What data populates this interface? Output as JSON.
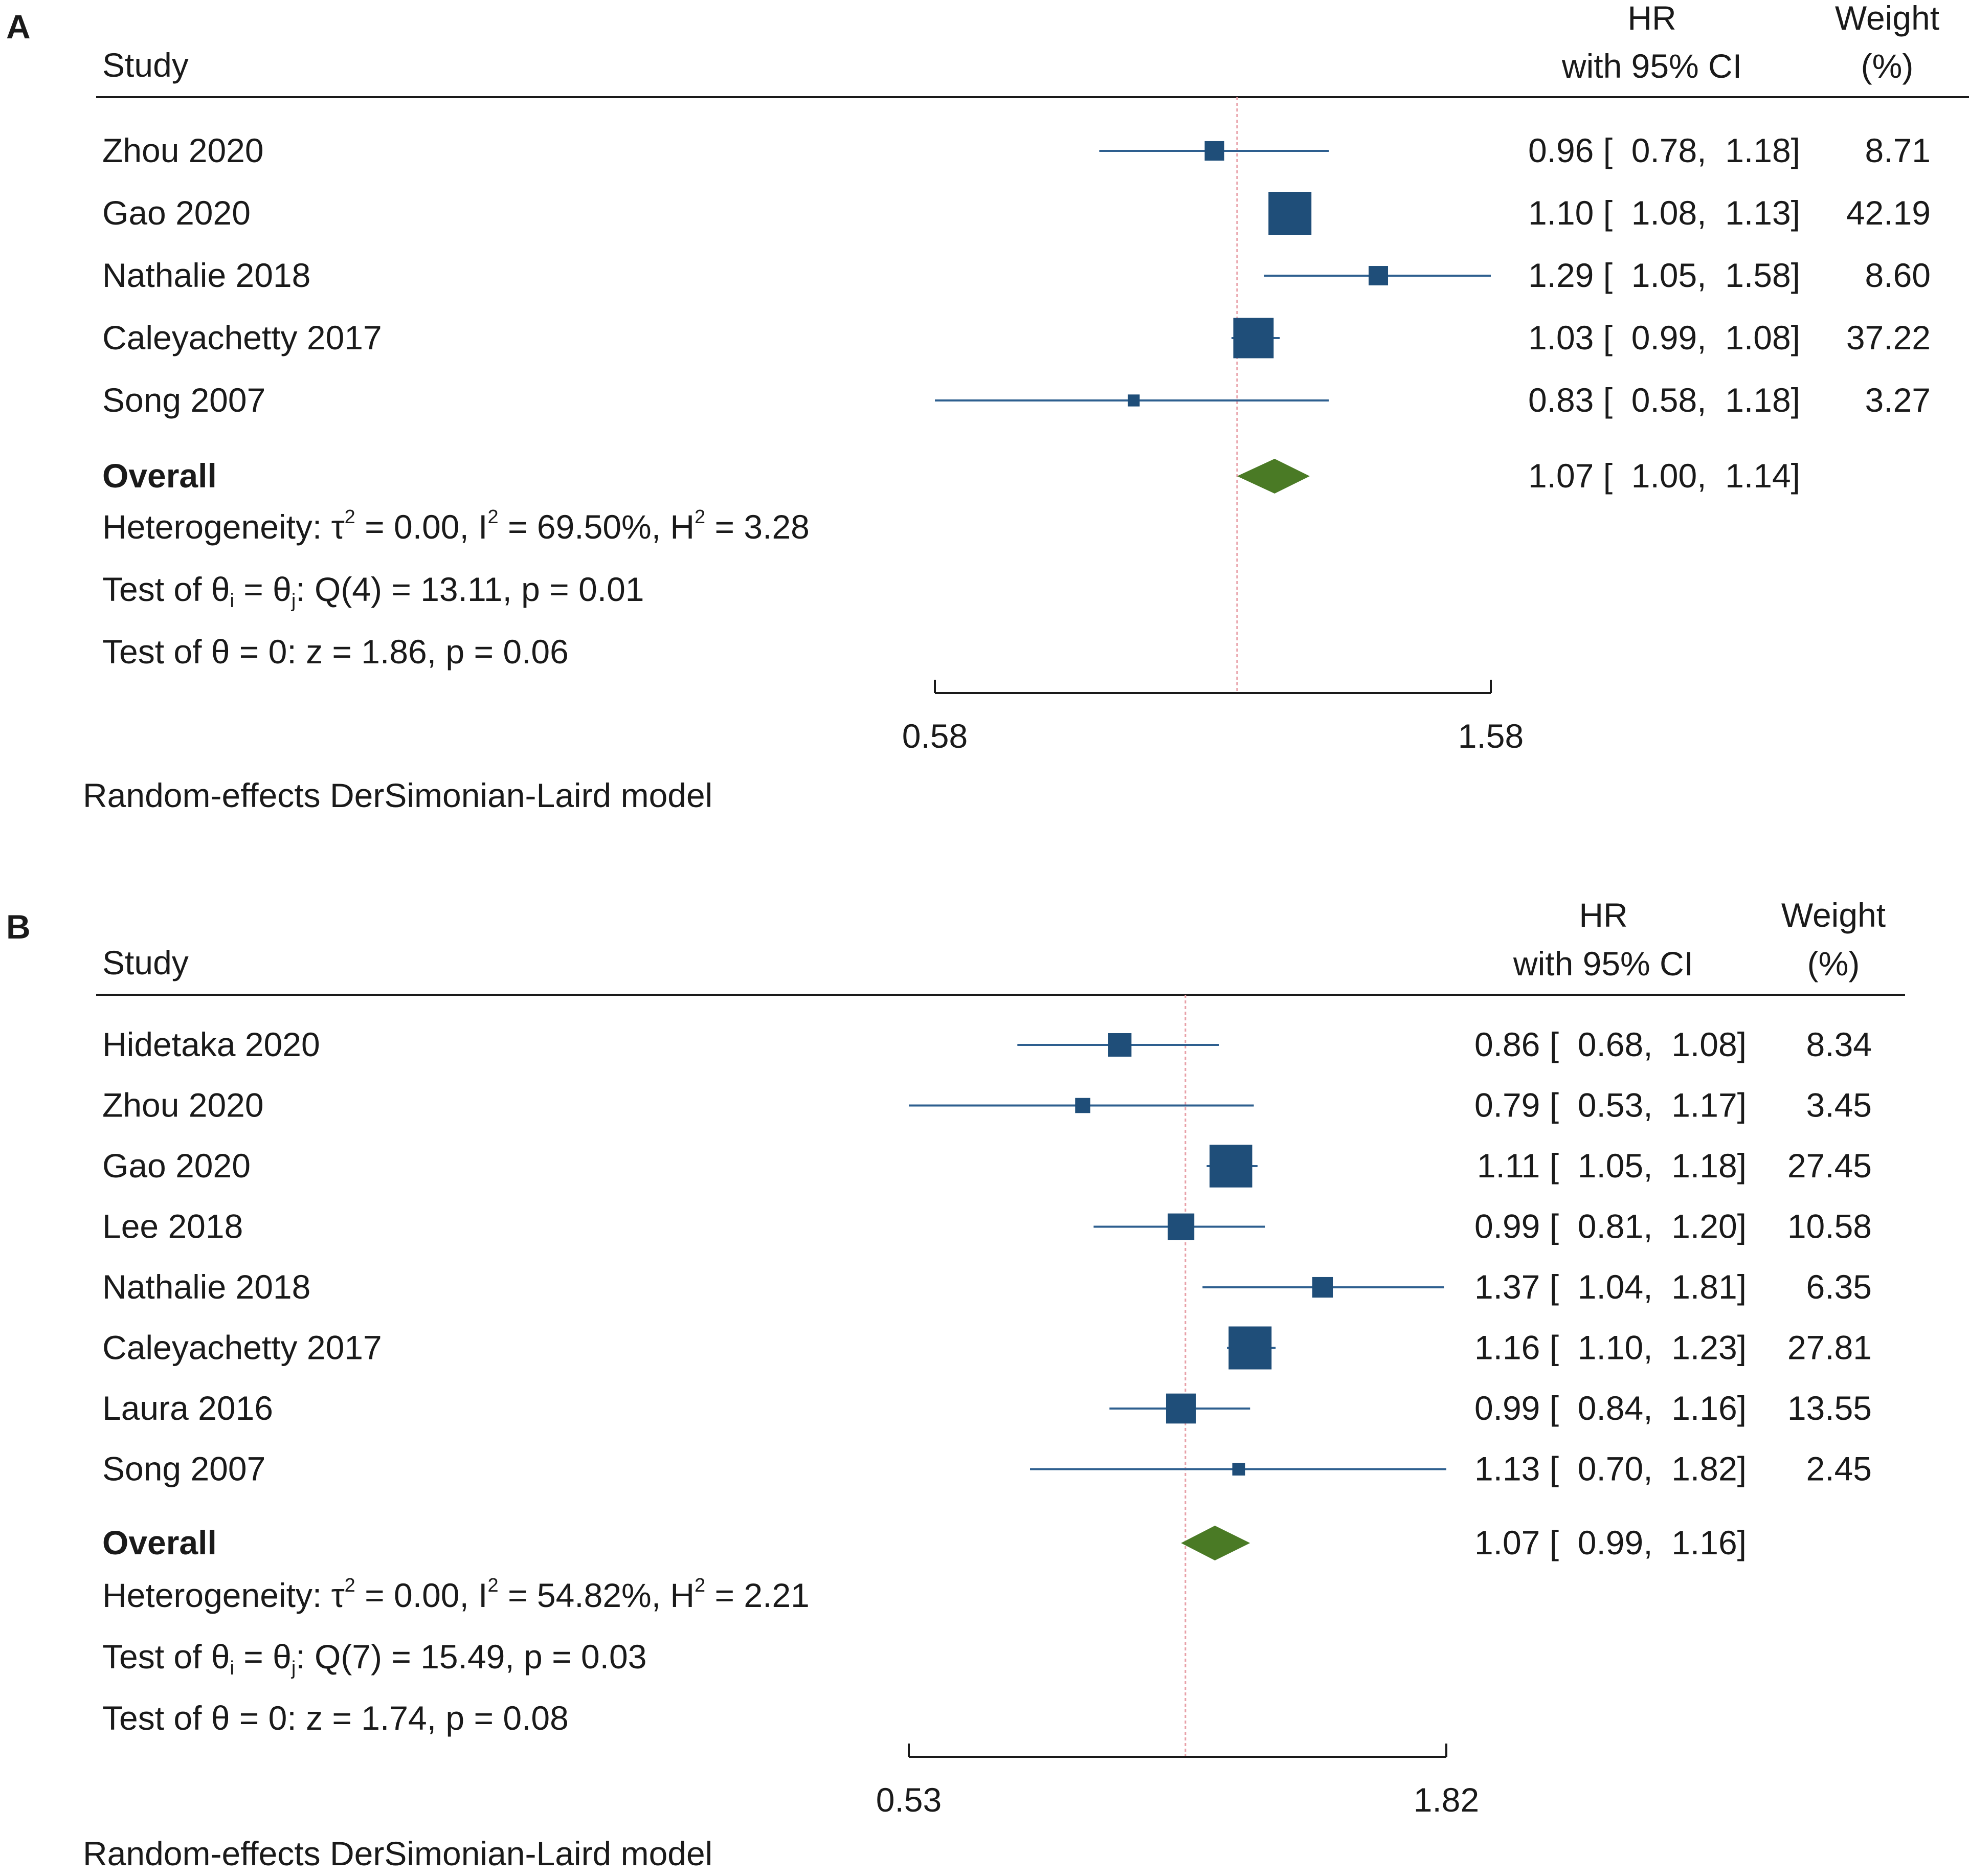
{
  "colors": {
    "marker": "#1f4e79",
    "ci_line": "#2e5f8f",
    "overall": "#4a7a25",
    "null_line": "#e8a0a8",
    "rule": "#1a1a1a",
    "text": "#1a1a1a"
  },
  "chart_data": [
    {
      "type": "forest",
      "panel_label": "A",
      "headers": {
        "study": "Study",
        "effect_line1": "HR",
        "effect_line2": "with 95% CI",
        "weight_line1": "Weight",
        "weight_line2": "(%)"
      },
      "scale": "log",
      "axis": {
        "ticks": [
          0.58,
          1.58
        ],
        "tick_labels": [
          "0.58",
          "1.58"
        ],
        "range": [
          0.58,
          1.58
        ],
        "null_value": 1.0
      },
      "studies": [
        {
          "name": "Zhou 2020",
          "hr": 0.96,
          "lo": 0.78,
          "hi": 1.18,
          "ci_text": "0.96 [  0.78,  1.18]",
          "weight": 8.71,
          "weight_text": "8.71"
        },
        {
          "name": "Gao 2020",
          "hr": 1.1,
          "lo": 1.08,
          "hi": 1.13,
          "ci_text": "1.10 [  1.08,  1.13]",
          "weight": 42.19,
          "weight_text": "42.19"
        },
        {
          "name": "Nathalie 2018",
          "hr": 1.29,
          "lo": 1.05,
          "hi": 1.58,
          "ci_text": "1.29 [  1.05,  1.58]",
          "weight": 8.6,
          "weight_text": "8.60"
        },
        {
          "name": "Caleyachetty 2017",
          "hr": 1.03,
          "lo": 0.99,
          "hi": 1.08,
          "ci_text": "1.03 [  0.99,  1.08]",
          "weight": 37.22,
          "weight_text": "37.22"
        },
        {
          "name": "Song 2007",
          "hr": 0.83,
          "lo": 0.58,
          "hi": 1.18,
          "ci_text": "0.83 [  0.58,  1.18]",
          "weight": 3.27,
          "weight_text": "3.27"
        }
      ],
      "overall": {
        "label": "Overall",
        "hr": 1.07,
        "lo": 1.0,
        "hi": 1.14,
        "ci_text": "1.07 [  1.00,  1.14]"
      },
      "stats": {
        "heterogeneity": {
          "prefix": "Heterogeneity: τ",
          "tau_part": " = 0.00, I",
          "i_part": " = 69.50%, H",
          "h_part": " = 3.28",
          "sup": "2"
        },
        "test_q": {
          "prefix": "Test of θ",
          "sub_i": "i",
          "mid": " = θ",
          "sub_j": "j",
          "rest": ": Q(4) = 13.11, p = 0.01"
        },
        "test_z": "Test of θ = 0: z = 1.86, p = 0.06"
      },
      "model_note": "Random-effects DerSimonian-Laird model"
    },
    {
      "type": "forest",
      "panel_label": "B",
      "headers": {
        "study": "Study",
        "effect_line1": "HR",
        "effect_line2": "with 95% CI",
        "weight_line1": "Weight",
        "weight_line2": "(%)"
      },
      "scale": "log",
      "axis": {
        "ticks": [
          0.53,
          1.82
        ],
        "tick_labels": [
          "0.53",
          "1.82"
        ],
        "range": [
          0.53,
          1.82
        ],
        "null_value": 1.0
      },
      "studies": [
        {
          "name": "Hidetaka 2020",
          "hr": 0.86,
          "lo": 0.68,
          "hi": 1.08,
          "ci_text": "0.86 [  0.68,  1.08]",
          "weight": 8.34,
          "weight_text": "8.34"
        },
        {
          "name": "Zhou 2020",
          "hr": 0.79,
          "lo": 0.53,
          "hi": 1.17,
          "ci_text": "0.79 [  0.53,  1.17]",
          "weight": 3.45,
          "weight_text": "3.45"
        },
        {
          "name": "Gao 2020",
          "hr": 1.11,
          "lo": 1.05,
          "hi": 1.18,
          "ci_text": "1.11 [  1.05,  1.18]",
          "weight": 27.45,
          "weight_text": "27.45"
        },
        {
          "name": "Lee 2018",
          "hr": 0.99,
          "lo": 0.81,
          "hi": 1.2,
          "ci_text": "0.99 [  0.81,  1.20]",
          "weight": 10.58,
          "weight_text": "10.58"
        },
        {
          "name": "Nathalie 2018",
          "hr": 1.37,
          "lo": 1.04,
          "hi": 1.81,
          "ci_text": "1.37 [  1.04,  1.81]",
          "weight": 6.35,
          "weight_text": "6.35"
        },
        {
          "name": "Caleyachetty 2017",
          "hr": 1.16,
          "lo": 1.1,
          "hi": 1.23,
          "ci_text": "1.16 [  1.10,  1.23]",
          "weight": 27.81,
          "weight_text": "27.81"
        },
        {
          "name": "Laura 2016",
          "hr": 0.99,
          "lo": 0.84,
          "hi": 1.16,
          "ci_text": "0.99 [  0.84,  1.16]",
          "weight": 13.55,
          "weight_text": "13.55"
        },
        {
          "name": "Song 2007",
          "hr": 1.13,
          "lo": 0.7,
          "hi": 1.82,
          "ci_text": "1.13 [  0.70,  1.82]",
          "weight": 2.45,
          "weight_text": "2.45"
        }
      ],
      "overall": {
        "label": "Overall",
        "hr": 1.07,
        "lo": 0.99,
        "hi": 1.16,
        "ci_text": "1.07 [  0.99,  1.16]"
      },
      "stats": {
        "heterogeneity": {
          "prefix": "Heterogeneity: τ",
          "tau_part": " = 0.00, I",
          "i_part": " = 54.82%, H",
          "h_part": " = 2.21",
          "sup": "2"
        },
        "test_q": {
          "prefix": "Test of θ",
          "sub_i": "i",
          "mid": " = θ",
          "sub_j": "j",
          "rest": ": Q(7) = 15.49, p = 0.03"
        },
        "test_z": "Test of θ = 0: z = 1.74, p = 0.08"
      },
      "model_note": "Random-effects DerSimonian-Laird model"
    }
  ]
}
